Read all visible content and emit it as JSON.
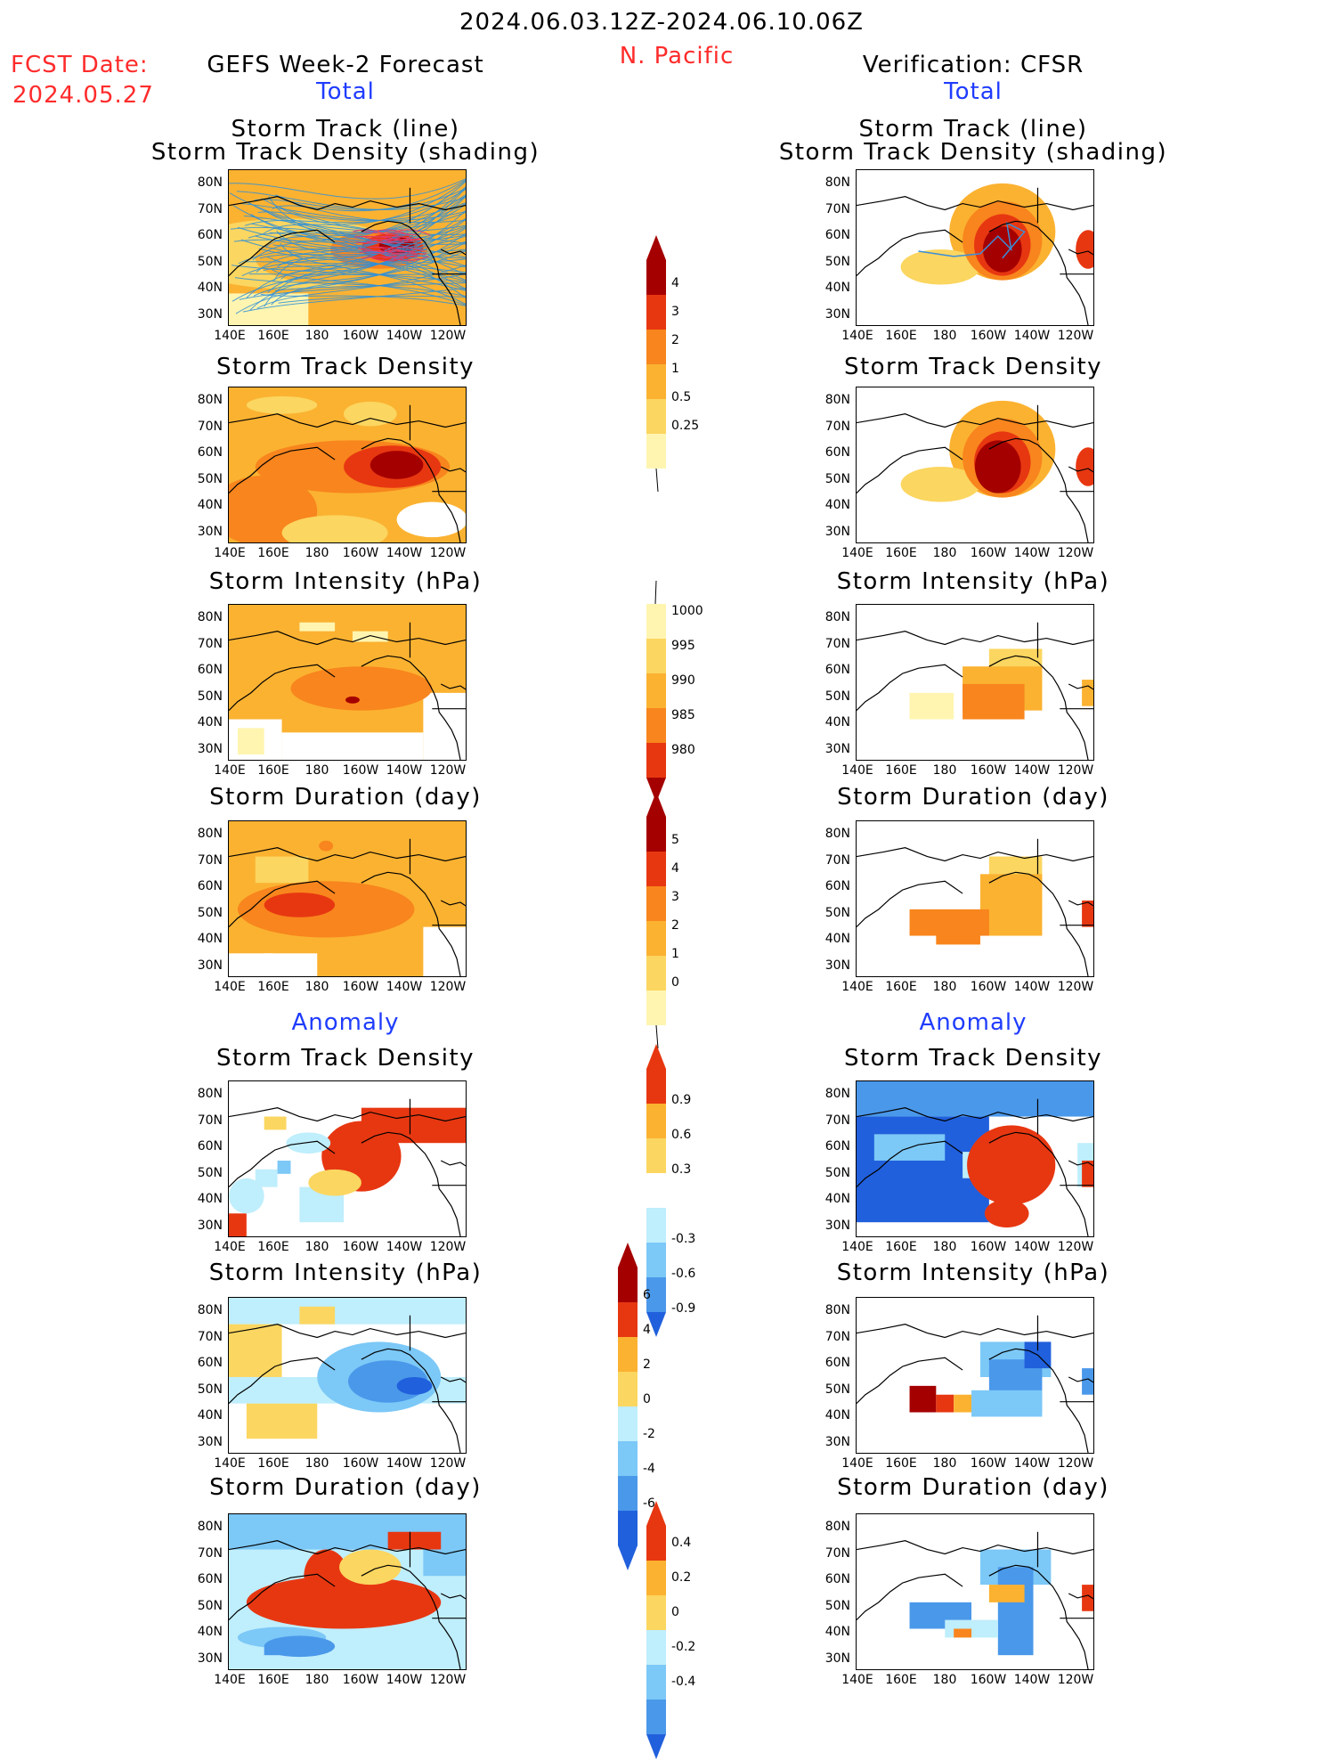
{
  "header": {
    "date_range": "2024.06.03.12Z-2024.06.10.06Z",
    "region": "N. Pacific",
    "fcst_label": "FCST Date:",
    "fcst_date": "2024.05.27",
    "left_title": "GEFS Week-2 Forecast",
    "right_title": "Verification: CFSR",
    "total_label": "Total",
    "anomaly_label": "Anomaly"
  },
  "panels": {
    "track_line": [
      "Storm Track (line)",
      "Storm Track Density (shading)"
    ],
    "track_density": "Storm Track Density",
    "intensity": "Storm Intensity (hPa)",
    "duration": "Storm Duration (day)"
  },
  "axes": {
    "lat_labels": [
      "80N",
      "70N",
      "60N",
      "50N",
      "40N",
      "30N"
    ],
    "lon_labels": [
      "140E",
      "160E",
      "180",
      "160W",
      "140W",
      "120W"
    ]
  },
  "colorbars": {
    "density_total": [
      "4",
      "3",
      "2",
      "1",
      "0.5",
      "0.25"
    ],
    "intensity_total": [
      "1000",
      "995",
      "990",
      "985",
      "980"
    ],
    "duration_total": [
      "5",
      "4",
      "3",
      "2",
      "1",
      "0"
    ],
    "density_anom": [
      "0.9",
      "0.6",
      "0.3",
      "-0.3",
      "-0.6",
      "-0.9"
    ],
    "intensity_anom": [
      "6",
      "4",
      "2",
      "0",
      "-2",
      "-4",
      "-6"
    ],
    "duration_anom": [
      "0.4",
      "0.2",
      "0",
      "-0.2",
      "-0.4"
    ]
  },
  "colors": {
    "warm": [
      "#fff5b0",
      "#fbd660",
      "#fbb231",
      "#f8851d",
      "#e73711",
      "#a50000"
    ],
    "cool": [
      "#bfeefc",
      "#7cc8f7",
      "#4a98ea",
      "#2160dc"
    ],
    "text_red": "#ff2b2b",
    "text_blue": "#1f3cff"
  }
}
